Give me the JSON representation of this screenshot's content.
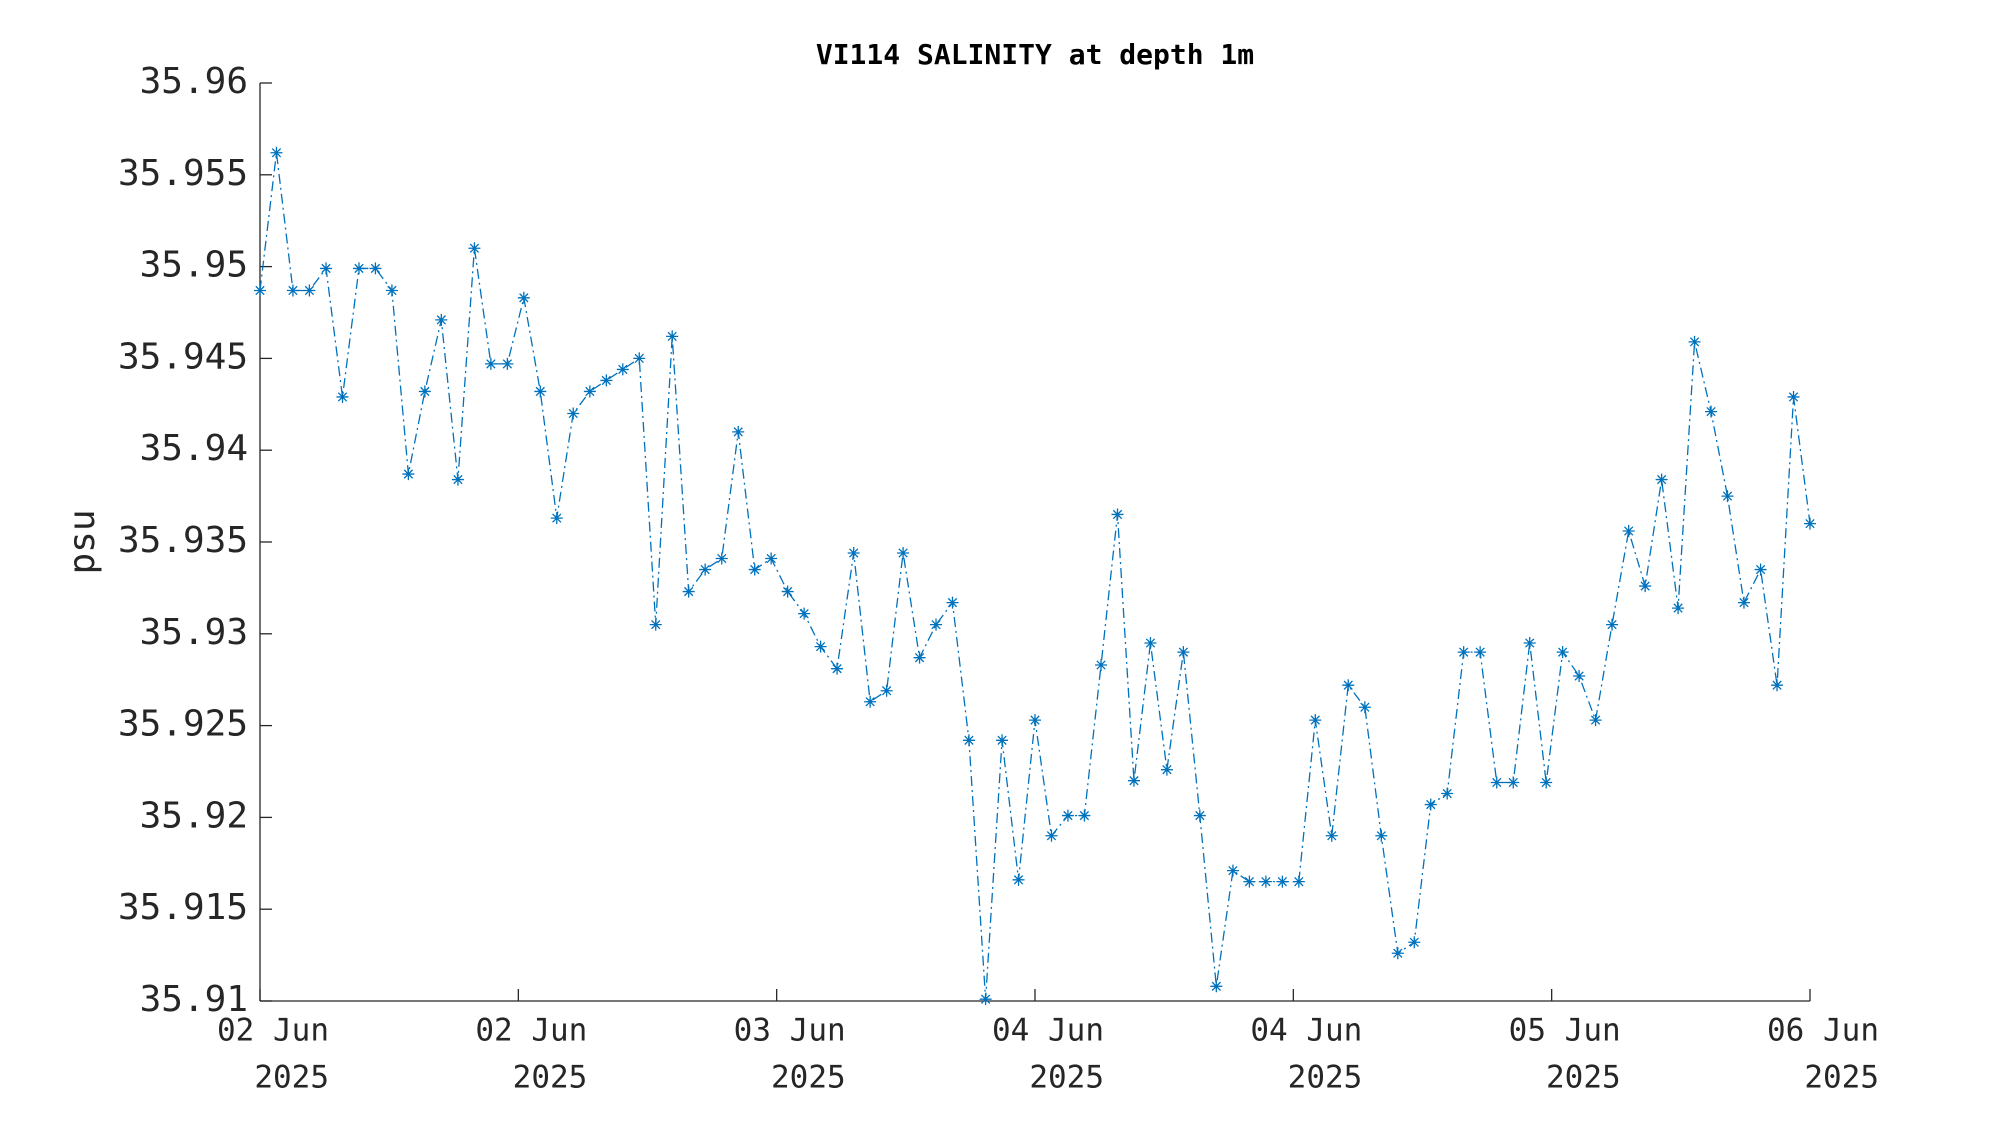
{
  "chart_data": {
    "type": "line",
    "title": "VI114 SALINITY at depth 1m",
    "ylabel": "psu",
    "color": "#0072bd",
    "line_style": "dash-dot",
    "marker": "asterisk",
    "x": [
      0,
      1.02,
      2.04,
      3.06,
      4.09,
      5.11,
      6.13,
      7.15,
      8.17,
      9.19,
      10.21,
      11.23,
      12.26,
      13.28,
      14.3,
      15.32,
      16.34,
      17.36,
      18.38,
      19.4,
      20.43,
      21.45,
      22.47,
      23.49,
      24.51,
      25.53,
      26.55,
      27.57,
      28.6,
      29.62,
      30.64,
      31.66,
      32.68,
      33.7,
      34.72,
      35.74,
      36.77,
      37.79,
      38.81,
      39.83,
      40.85,
      41.87,
      42.89,
      43.91,
      44.94,
      45.96,
      46.98,
      48,
      49.02,
      50.04,
      51.06,
      52.09,
      53.11,
      54.13,
      55.15,
      56.17,
      57.19,
      58.21,
      59.23,
      60.26,
      61.28,
      62.3,
      63.32,
      64.34,
      65.36,
      66.38,
      67.4,
      68.43,
      69.45,
      70.47,
      71.49,
      72.51,
      73.53,
      74.55,
      75.57,
      76.6,
      77.62,
      78.64,
      79.66,
      80.68,
      81.7,
      82.72,
      83.74,
      84.77,
      85.79,
      86.81,
      87.83,
      88.85,
      89.87,
      90.89,
      91.91,
      92.94,
      93.96,
      94.98,
      96
    ],
    "values": [
      35.9487,
      35.9562,
      35.9487,
      35.9487,
      35.9499,
      35.9429,
      35.9499,
      35.9499,
      35.9487,
      35.9387,
      35.9432,
      35.9471,
      35.9384,
      35.951,
      35.9447,
      35.9447,
      35.9483,
      35.9432,
      35.9363,
      35.942,
      35.9432,
      35.9438,
      35.9444,
      35.945,
      35.9305,
      35.9462,
      35.9323,
      35.9335,
      35.9341,
      35.941,
      35.9335,
      35.9341,
      35.9323,
      35.9311,
      35.9293,
      35.9281,
      35.9344,
      35.9263,
      35.9269,
      35.9344,
      35.9287,
      35.9305,
      35.9317,
      35.9242,
      35.9101,
      35.9242,
      35.9166,
      35.9253,
      35.919,
      35.9201,
      35.9201,
      35.9283,
      35.9365,
      35.922,
      35.9295,
      35.9226,
      35.929,
      35.9201,
      35.9108,
      35.9171,
      35.9165,
      35.9165,
      35.9165,
      35.9165,
      35.9253,
      35.919,
      35.9272,
      35.926,
      35.919,
      35.9126,
      35.9132,
      35.9207,
      35.9213,
      35.929,
      35.929,
      35.9219,
      35.9219,
      35.9295,
      35.9219,
      35.929,
      35.9277,
      35.9253,
      35.9305,
      35.9356,
      35.9326,
      35.9384,
      35.9314,
      35.9459,
      35.9421,
      35.9375,
      35.9317,
      35.9335,
      35.9272,
      35.9429,
      35.936
    ],
    "xlim": [
      0,
      96
    ],
    "xticks": [
      {
        "value": 0,
        "label": "02 Jun",
        "sublabel": "2025"
      },
      {
        "value": 16,
        "label": "02 Jun",
        "sublabel": "2025"
      },
      {
        "value": 32,
        "label": "03 Jun",
        "sublabel": "2025"
      },
      {
        "value": 48,
        "label": "04 Jun",
        "sublabel": "2025"
      },
      {
        "value": 64,
        "label": "04 Jun",
        "sublabel": "2025"
      },
      {
        "value": 80,
        "label": "05 Jun",
        "sublabel": "2025"
      },
      {
        "value": 96,
        "label": "06 Jun",
        "sublabel": "2025"
      }
    ],
    "ylim": [
      35.91,
      35.96
    ],
    "yticks": [
      35.91,
      35.915,
      35.92,
      35.925,
      35.93,
      35.935,
      35.94,
      35.945,
      35.95,
      35.955,
      35.96
    ]
  }
}
